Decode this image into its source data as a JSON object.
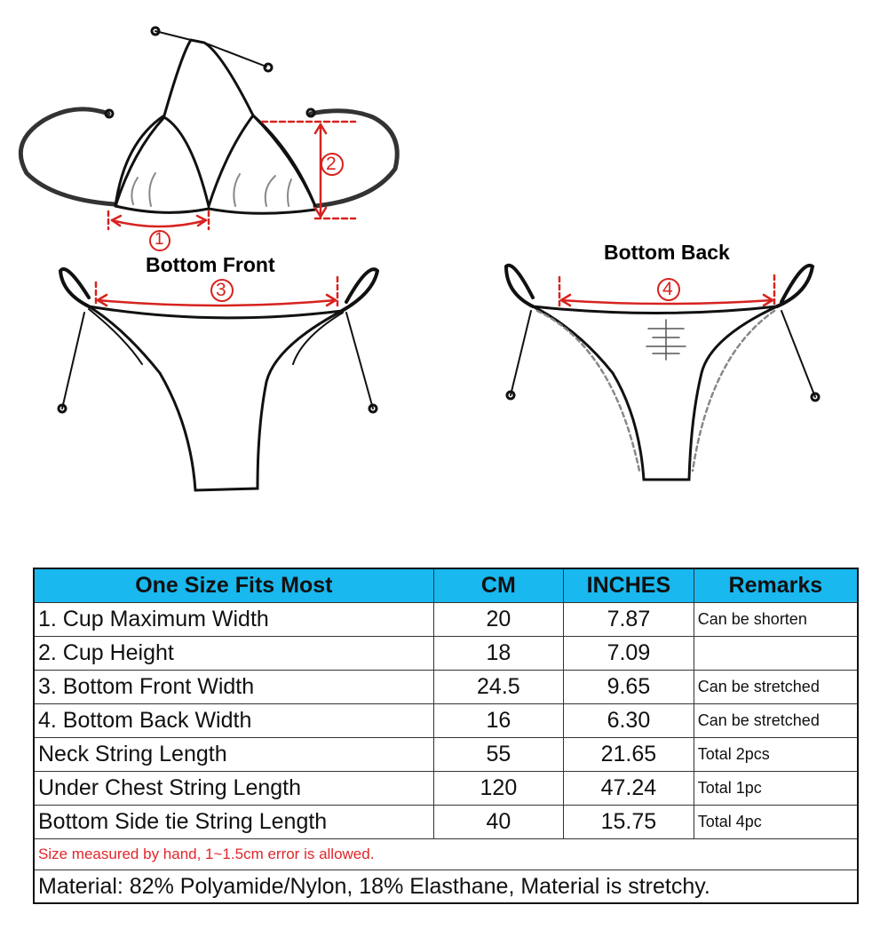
{
  "diagram": {
    "bottom_front_label": "Bottom Front",
    "bottom_back_label": "Bottom Back",
    "markers": [
      "1",
      "2",
      "3",
      "4"
    ],
    "measure_color": "#d6231f"
  },
  "table": {
    "header_color": "#19b8ef",
    "headers": [
      "One Size Fits Most",
      "CM",
      "INCHES",
      "Remarks"
    ],
    "rows": [
      [
        "1. Cup Maximum Width",
        "20",
        "7.87",
        "Can be shorten"
      ],
      [
        "2. Cup Height",
        "18",
        "7.09",
        ""
      ],
      [
        "3. Bottom Front Width",
        "24.5",
        "9.65",
        "Can be stretched"
      ],
      [
        "4. Bottom Back Width",
        "16",
        "6.30",
        "Can be stretched"
      ],
      [
        "Neck String Length",
        "55",
        "21.65",
        "Total 2pcs"
      ],
      [
        "Under Chest String Length",
        "120",
        "47.24",
        "Total 1pc"
      ],
      [
        "Bottom Side tie String Length",
        "40",
        "15.75",
        "Total 4pc"
      ]
    ],
    "note": "Size measured by hand, 1~1.5cm error is allowed.",
    "material": "Material: 82% Polyamide/Nylon,  18% Elasthane, Material is stretchy."
  }
}
